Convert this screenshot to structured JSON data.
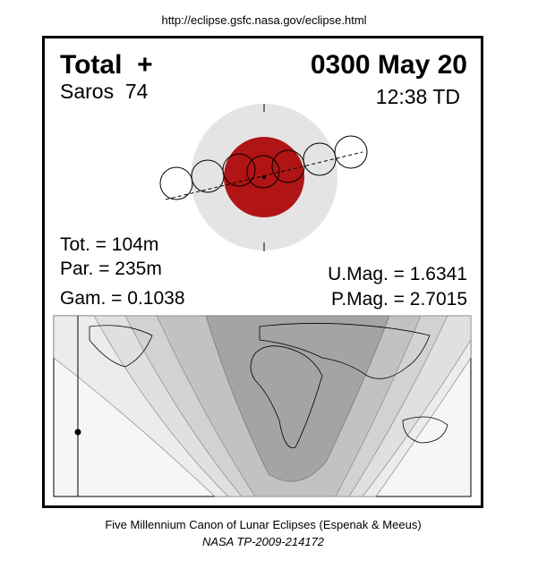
{
  "header": {
    "url": "http://eclipse.gsfc.nasa.gov/eclipse.html"
  },
  "eclipse": {
    "type": "Total  +",
    "saros": "Saros  74",
    "date": "0300 May 20",
    "time": "12:38 TD"
  },
  "stats": {
    "tot": "Tot. = 104m",
    "par": "Par. = 235m",
    "gam": "Gam. = 0.1038",
    "umag": "U.Mag. = 1.6341",
    "pmag": "P.Mag. = 2.7015"
  },
  "footer": {
    "line1": "Five Millennium Canon of Lunar Eclipses (Espenak & Meeus)",
    "line2": "NASA TP-2009-214172"
  }
}
